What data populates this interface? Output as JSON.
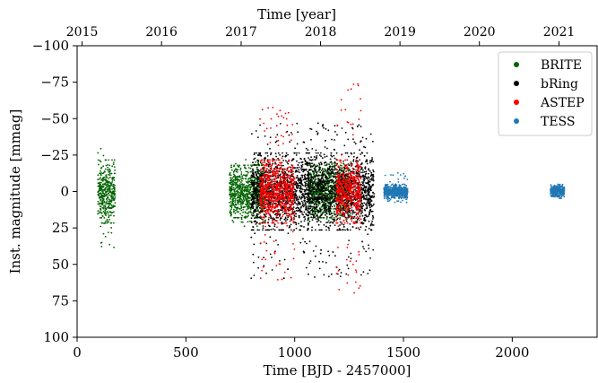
{
  "chart_data": {
    "type": "scatter",
    "xlabel": "Time [BJD - 2457000]",
    "ylabel": "Inst. magnitude [mmag]",
    "top_xlabel": "Time [year]",
    "xlim": [
      0,
      2390
    ],
    "ylim": [
      100,
      -100
    ],
    "y_inverted": true,
    "x_ticks": [
      0,
      500,
      1000,
      1500,
      2000
    ],
    "x_tick_labels": [
      "0",
      "500",
      "1000",
      "1500",
      "2000"
    ],
    "y_ticks": [
      -100,
      -75,
      -50,
      -25,
      0,
      25,
      50,
      75,
      100
    ],
    "y_tick_labels": [
      "−100",
      "−75",
      "−50",
      "−25",
      "0",
      "25",
      "50",
      "75",
      "100"
    ],
    "top_ticks": [
      {
        "label": "2015",
        "x": 23
      },
      {
        "label": "2016",
        "x": 388
      },
      {
        "label": "2017",
        "x": 754
      },
      {
        "label": "2018",
        "x": 1119
      },
      {
        "label": "2019",
        "x": 1484
      },
      {
        "label": "2020",
        "x": 1849
      },
      {
        "label": "2021",
        "x": 2215
      }
    ],
    "grid": false,
    "legend_position": "top-right",
    "series": [
      {
        "name": "BRITE",
        "color": "#006400",
        "segments": [
          {
            "x_start": 95,
            "x_end": 175,
            "y_min": -32,
            "y_max": 40,
            "y_core": 18
          },
          {
            "x_start": 700,
            "x_end": 860,
            "y_min": -22,
            "y_max": 25,
            "y_core": 15
          },
          {
            "x_start": 1060,
            "x_end": 1250,
            "y_min": -20,
            "y_max": 20,
            "y_core": 15
          }
        ]
      },
      {
        "name": "bRing",
        "color": "#000000",
        "segments": [
          {
            "x_start": 800,
            "x_end": 1365,
            "y_min": -47,
            "y_max": 60,
            "y_core": 22
          }
        ]
      },
      {
        "name": "ASTEP",
        "color": "#ff0000",
        "segments": [
          {
            "x_start": 840,
            "x_end": 1000,
            "y_min": -58,
            "y_max": 62,
            "y_core": 18
          },
          {
            "x_start": 1190,
            "x_end": 1305,
            "y_min": -76,
            "y_max": 72,
            "y_core": 18
          }
        ]
      },
      {
        "name": "TESS",
        "color": "#1f77b4",
        "segments": [
          {
            "x_start": 1410,
            "x_end": 1520,
            "y_min": -13,
            "y_max": 8,
            "y_core": 4
          },
          {
            "x_start": 2175,
            "x_end": 2240,
            "y_min": -5,
            "y_max": 5,
            "y_core": 3
          }
        ]
      }
    ]
  }
}
